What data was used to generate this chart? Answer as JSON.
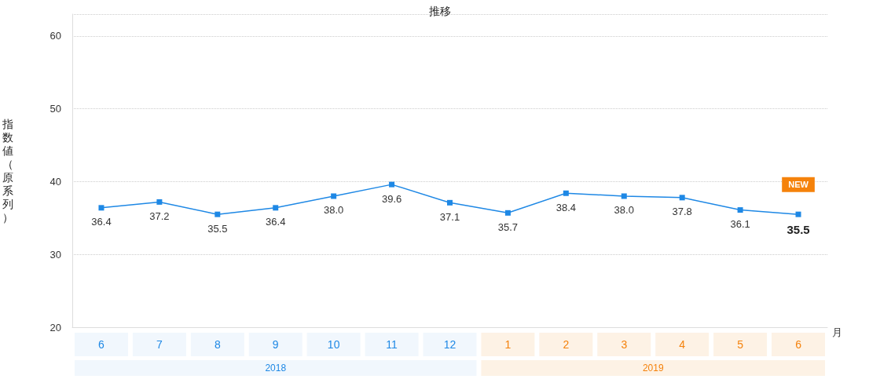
{
  "chart_data": {
    "type": "line",
    "title": "推移",
    "ylabel": "指数値（原系列）",
    "xlabel": "月",
    "categories": [
      "6",
      "7",
      "8",
      "9",
      "10",
      "11",
      "12",
      "1",
      "2",
      "3",
      "4",
      "5",
      "6"
    ],
    "series": [
      {
        "color": "#1e88e5",
        "values": [
          36.4,
          37.2,
          35.5,
          36.4,
          38,
          39.6,
          37.1,
          35.7,
          38.4,
          38,
          37.8,
          36.1,
          35.5
        ],
        "value_labels": [
          "36.4",
          "37.2",
          "35.5",
          "36.4",
          "38.0",
          "39.6",
          "37.1",
          "35.7",
          "38.4",
          "38.0",
          "37.8",
          "36.1",
          "35.5"
        ]
      }
    ],
    "ylim": [
      20,
      63
    ],
    "yticks": [
      20,
      30,
      40,
      50,
      60
    ],
    "grid": "y",
    "marker": "square",
    "line_style": "solid",
    "annotations": [
      "2018",
      "2019",
      "NEW"
    ]
  }
}
